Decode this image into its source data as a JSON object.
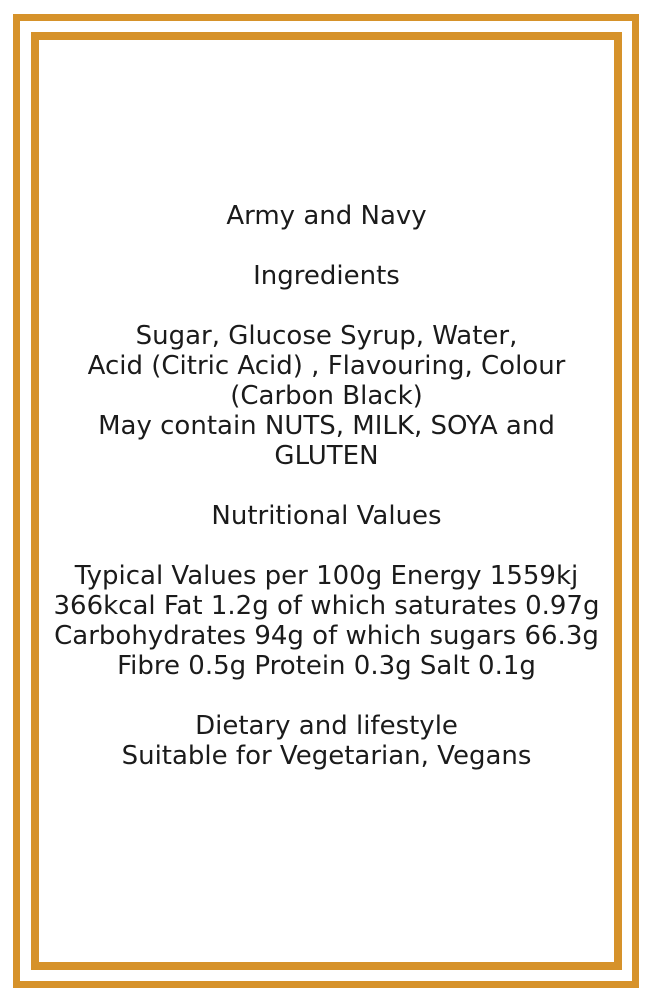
{
  "frame": {
    "border_color": "#d6922a"
  },
  "label": {
    "text_color": "#1b1b1b",
    "product_name": "Army and Navy",
    "ingredients": {
      "heading": "Ingredients",
      "lines": [
        "Sugar, Glucose Syrup, Water,",
        "Acid (Citric Acid) , Flavouring, Colour",
        "(Carbon Black)",
        "May contain NUTS, MILK, SOYA and",
        "GLUTEN"
      ]
    },
    "nutrition": {
      "heading": "Nutritional Values",
      "lines": [
        "Typical Values per 100g Energy 1559kj",
        "366kcal Fat 1.2g of which saturates 0.97g",
        "Carbohydrates 94g of which sugars 66.3g",
        "Fibre 0.5g Protein 0.3g Salt 0.1g"
      ]
    },
    "dietary": {
      "heading": "Dietary and lifestyle",
      "lines": [
        "Suitable for Vegetarian, Vegans"
      ]
    }
  }
}
